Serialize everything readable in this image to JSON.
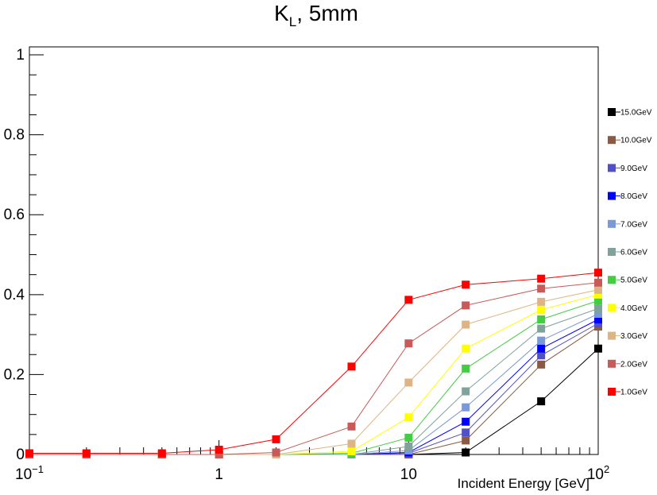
{
  "chart_data": {
    "type": "line",
    "title": "K",
    "title_subscript": "L",
    "title_suffix": ", 5mm",
    "xlabel": "Incident Energy [GeV]",
    "ylabel": "",
    "xscale": "log",
    "xlim": [
      0.1,
      100
    ],
    "ylim": [
      0,
      1.02
    ],
    "x_tick_labels": [
      {
        "value": 0.1,
        "base": "10",
        "exp": "−1"
      },
      {
        "value": 1,
        "base": "1",
        "exp": ""
      },
      {
        "value": 10,
        "base": "10",
        "exp": ""
      },
      {
        "value": 100,
        "base": "10",
        "exp": "2"
      }
    ],
    "y_tick_labels": [
      {
        "value": 0,
        "label": "0"
      },
      {
        "value": 0.2,
        "label": "0.2"
      },
      {
        "value": 0.4,
        "label": "0.4"
      },
      {
        "value": 0.6,
        "label": "0.6"
      },
      {
        "value": 0.8,
        "label": "0.8"
      },
      {
        "value": 1,
        "label": "1"
      }
    ],
    "x": [
      0.1,
      0.2,
      0.5,
      1,
      2,
      5,
      10,
      20,
      50,
      100
    ],
    "legend_position": "right",
    "series": [
      {
        "name": "15.0GeV",
        "color": "#000000",
        "values": [
          0,
          0,
          0,
          0,
          0,
          0,
          0,
          0.005,
          0.133,
          0.265
        ]
      },
      {
        "name": "10.0GeV",
        "color": "#8a5a44",
        "values": [
          0,
          0,
          0,
          0,
          0,
          0,
          0,
          0.035,
          0.225,
          0.32
        ]
      },
      {
        "name": "9.0GeV",
        "color": "#5050c8",
        "values": [
          0,
          0,
          0,
          0,
          0,
          0,
          0.003,
          0.055,
          0.248,
          0.328
        ]
      },
      {
        "name": "8.0GeV",
        "color": "#0000ff",
        "values": [
          0,
          0,
          0,
          0,
          0,
          0,
          0.005,
          0.082,
          0.265,
          0.338
        ]
      },
      {
        "name": "7.0GeV",
        "color": "#7a99d6",
        "values": [
          0,
          0,
          0,
          0,
          0,
          0,
          0.01,
          0.118,
          0.285,
          0.352
        ]
      },
      {
        "name": "6.0GeV",
        "color": "#7fa39b",
        "values": [
          0,
          0,
          0,
          0,
          0,
          0,
          0.02,
          0.158,
          0.315,
          0.365
        ]
      },
      {
        "name": "5.0GeV",
        "color": "#44cc44",
        "values": [
          0,
          0,
          0,
          0,
          0,
          0.003,
          0.042,
          0.215,
          0.338,
          0.385
        ]
      },
      {
        "name": "4.0GeV",
        "color": "#ffff00",
        "values": [
          0,
          0,
          0,
          0,
          0,
          0.008,
          0.093,
          0.265,
          0.362,
          0.4
        ]
      },
      {
        "name": "3.0GeV",
        "color": "#ddb486",
        "values": [
          0,
          0,
          0,
          0,
          0,
          0.027,
          0.18,
          0.325,
          0.382,
          0.412
        ]
      },
      {
        "name": "2.0GeV",
        "color": "#c85a5a",
        "values": [
          0,
          0,
          0,
          0,
          0.005,
          0.07,
          0.278,
          0.373,
          0.415,
          0.43
        ]
      },
      {
        "name": "1.0GeV",
        "color": "#ff0000",
        "values": [
          0.003,
          0.003,
          0.003,
          0.012,
          0.038,
          0.22,
          0.387,
          0.425,
          0.44,
          0.455
        ]
      }
    ]
  }
}
